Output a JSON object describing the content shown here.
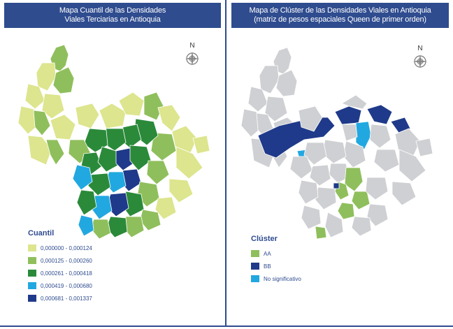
{
  "left": {
    "title_line1": "Mapa Cuantil de las Densidades",
    "title_line2": "Viales Terciarias en Antioquia",
    "compass_letter": "N",
    "legend_title": "Cuantil",
    "legend_items": [
      {
        "label": "0,000000 - 0,000124",
        "color": "#dde58e"
      },
      {
        "label": "0,000125 - 0,000260",
        "color": "#8fbf5c"
      },
      {
        "label": "0,000261 - 0,000418",
        "color": "#2b8a3a"
      },
      {
        "label": "0,000419 - 0,000680",
        "color": "#22a8e0"
      },
      {
        "label": "0,000681 - 0,001337",
        "color": "#1f3a8a"
      }
    ]
  },
  "right": {
    "title_line1": "Mapa de Clúster de las Densidades Viales en Antioquia",
    "title_line2": "(matriz de pesos espaciales Queen de primer orden)",
    "compass_letter": "N",
    "legend_title": "Clúster",
    "legend_items": [
      {
        "label": "AA",
        "color": "#8fbf5c"
      },
      {
        "label": "BB",
        "color": "#1f3a8a"
      },
      {
        "label": "No significativo",
        "color": "#22a8e0"
      }
    ]
  },
  "colors": {
    "header": "#2f4c8f",
    "base_grey": "#cfd0d3",
    "border": "#ffffff"
  }
}
